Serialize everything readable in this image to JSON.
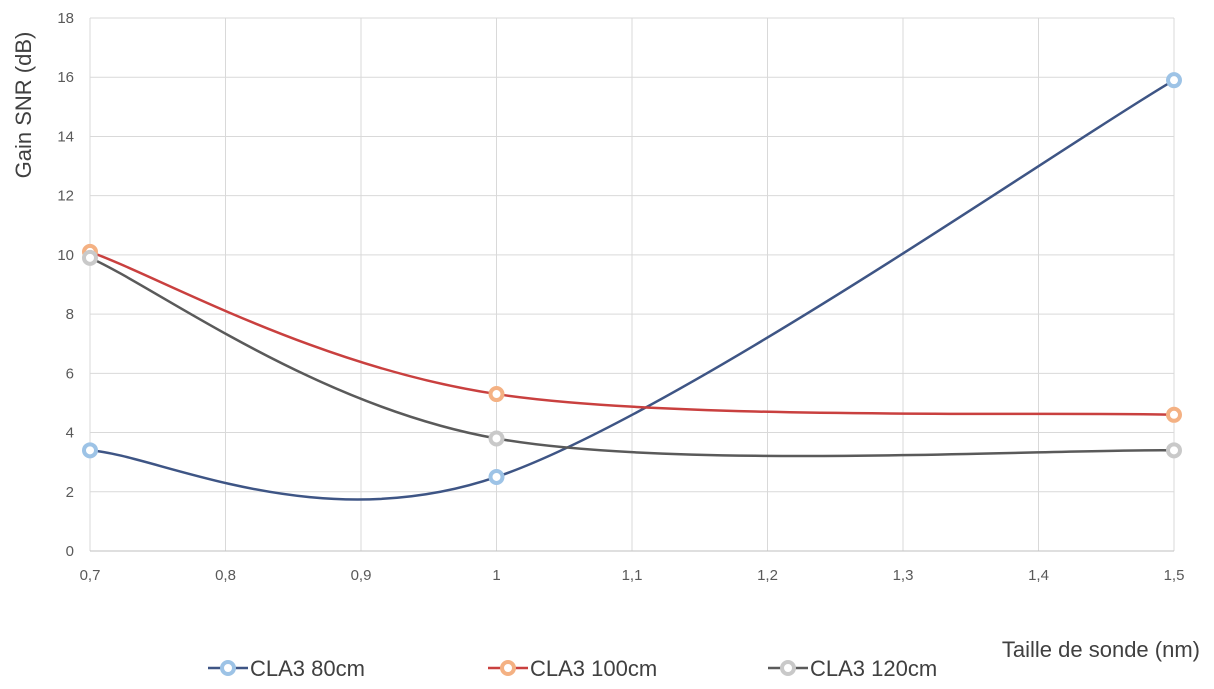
{
  "chart_data": {
    "type": "line",
    "smooth": true,
    "title": "",
    "xlabel": "Taille de sonde (nm)",
    "ylabel": "Gain SNR (dB)",
    "xlim": [
      0.7,
      1.5
    ],
    "ylim": [
      0,
      18
    ],
    "x_ticks": [
      0.7,
      0.8,
      0.9,
      1.0,
      1.1,
      1.2,
      1.3,
      1.4,
      1.5
    ],
    "x_tick_labels": [
      "0,7",
      "0,8",
      "0,9",
      "1",
      "1,1",
      "1,2",
      "1,3",
      "1,4",
      "1,5"
    ],
    "y_ticks": [
      0,
      2,
      4,
      6,
      8,
      10,
      12,
      14,
      16,
      18
    ],
    "y_tick_labels": [
      "0",
      "2",
      "4",
      "6",
      "8",
      "10",
      "12",
      "14",
      "16",
      "18"
    ],
    "grid": true,
    "legend_position": "bottom",
    "x": [
      0.7,
      1.0,
      1.5
    ],
    "series": [
      {
        "name": "CLA3 80cm",
        "values": [
          3.4,
          2.5,
          15.9
        ],
        "line_color": "#3e5585",
        "marker_color": "#9dc3e6"
      },
      {
        "name": "CLA3 100cm",
        "values": [
          10.1,
          5.3,
          4.6
        ],
        "line_color": "#c9403f",
        "marker_color": "#f4b183"
      },
      {
        "name": "CLA3 120cm",
        "values": [
          9.9,
          3.8,
          3.4
        ],
        "line_color": "#5a5a5a",
        "marker_color": "#c9c9c9"
      }
    ]
  }
}
